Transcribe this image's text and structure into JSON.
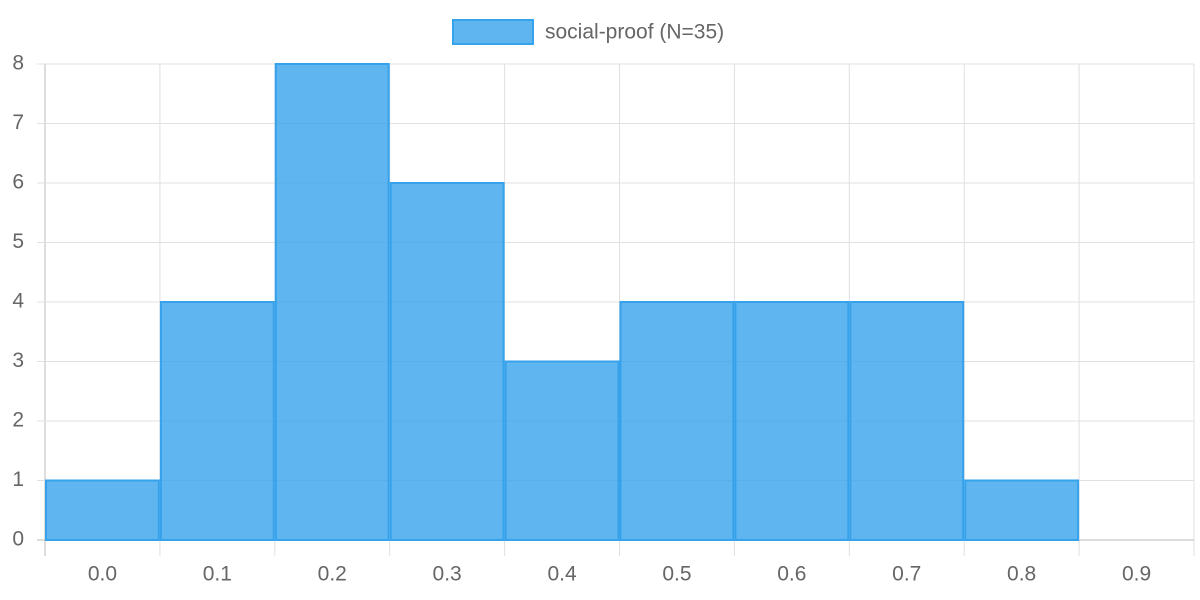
{
  "chart_data": {
    "type": "bar",
    "categories": [
      "0.0",
      "0.1",
      "0.2",
      "0.3",
      "0.4",
      "0.5",
      "0.6",
      "0.7",
      "0.8",
      "0.9"
    ],
    "series": [
      {
        "name": "social-proof (N=35)",
        "color": "#36a2eb",
        "values": [
          1,
          4,
          8,
          6,
          3,
          4,
          4,
          4,
          1,
          0
        ]
      }
    ],
    "ylim": [
      0,
      8
    ],
    "yticks": [
      0,
      1,
      2,
      3,
      4,
      5,
      6,
      7,
      8
    ],
    "grid": true,
    "legend": "top"
  }
}
